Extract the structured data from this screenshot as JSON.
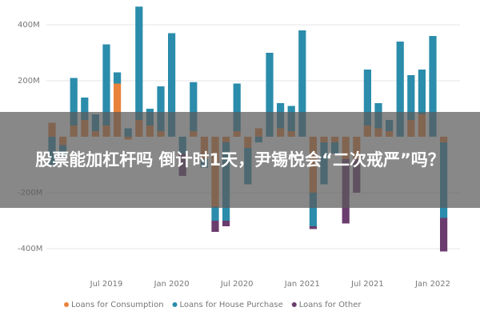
{
  "chart_data": {
    "type": "bar",
    "stacked": true,
    "categories": [
      null,
      null,
      null,
      null,
      null,
      "Jul 2019",
      null,
      null,
      null,
      null,
      null,
      "Jan 2020",
      null,
      null,
      null,
      null,
      null,
      "Jul 2020",
      null,
      null,
      null,
      null,
      null,
      "Jan 2021",
      null,
      null,
      null,
      null,
      null,
      "Jul 2021",
      null,
      null,
      null,
      null,
      null,
      "Jan 2022",
      null
    ],
    "series": [
      {
        "name": "Loans for Consumption",
        "color": "#e8823a",
        "values": [
          50,
          -30,
          40,
          60,
          20,
          40,
          190,
          -10,
          60,
          40,
          20,
          0,
          0,
          20,
          -80,
          -250,
          -20,
          20,
          -40,
          30,
          0,
          30,
          20,
          0,
          -200,
          -20,
          -20,
          -80,
          -80,
          40,
          30,
          20,
          0,
          60,
          80,
          0,
          -20
        ]
      },
      {
        "name": "Loans for House Purchase",
        "color": "#2b8cab",
        "values": [
          -100,
          -40,
          170,
          80,
          60,
          290,
          40,
          30,
          405,
          60,
          160,
          370,
          -60,
          175,
          -30,
          -50,
          -280,
          170,
          -130,
          -20,
          300,
          90,
          90,
          380,
          -120,
          -150,
          -40,
          0,
          0,
          200,
          90,
          40,
          340,
          160,
          160,
          360,
          -270
        ]
      },
      {
        "name": "Loans for Other",
        "color": "#6b3c6e",
        "values": [
          0,
          0,
          0,
          0,
          0,
          0,
          0,
          0,
          0,
          0,
          0,
          0,
          -80,
          0,
          0,
          -40,
          -20,
          0,
          0,
          0,
          0,
          0,
          0,
          0,
          -10,
          0,
          0,
          -230,
          -120,
          0,
          0,
          0,
          0,
          0,
          0,
          0,
          -120
        ]
      }
    ],
    "ylim": [
      -470,
      470
    ],
    "yticks": [
      {
        "value": -400,
        "label": "-400M"
      },
      {
        "value": -200,
        "label": "-200M"
      },
      {
        "value": 200,
        "label": "200M"
      },
      {
        "value": 400,
        "label": "400M"
      }
    ],
    "grid": true
  },
  "banner": {
    "text": "股票能加杠杆吗 倒计时1天，尹锡悦会“二次戒严”吗？"
  }
}
